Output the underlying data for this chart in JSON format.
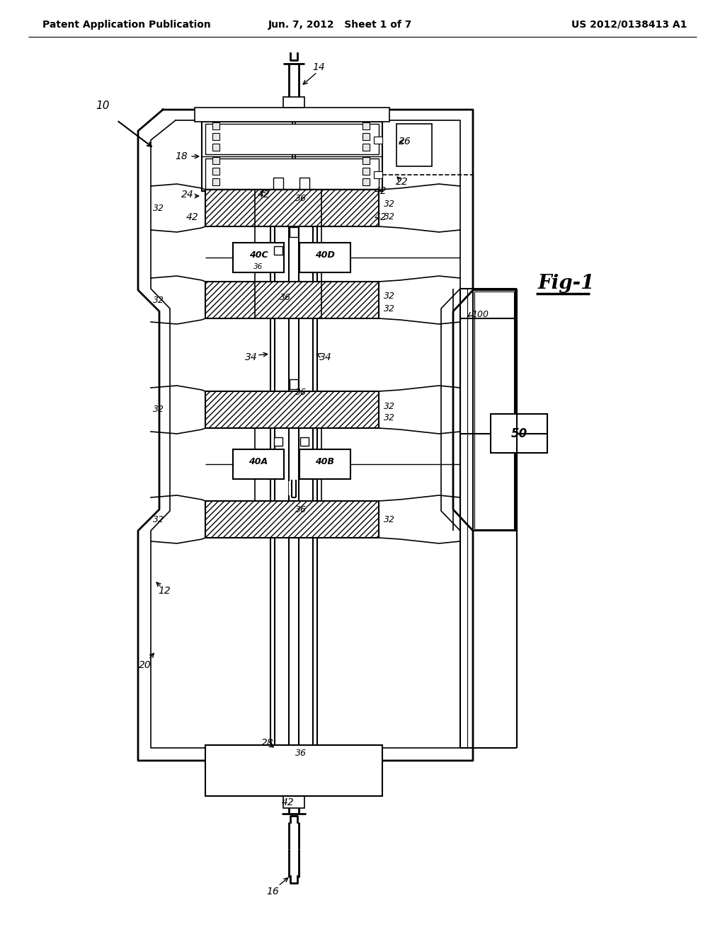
{
  "bg_color": "#ffffff",
  "header_left": "Patent Application Publication",
  "header_center": "Jun. 7, 2012   Sheet 1 of 7",
  "header_right": "US 2012/0138413 A1",
  "fig_label": "Fig-1"
}
